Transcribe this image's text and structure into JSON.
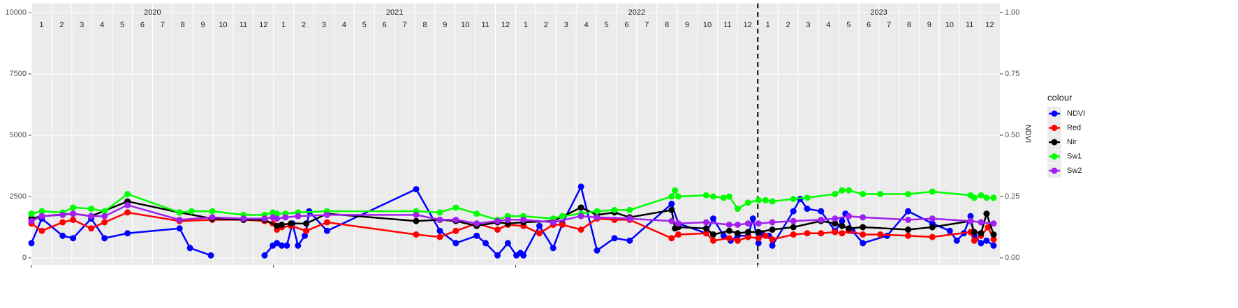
{
  "chart_data": {
    "type": "line",
    "y2_title": "NDVI",
    "legend_title": "colour",
    "legend": "right",
    "years": [
      2020,
      2021,
      2022,
      2023
    ],
    "months": [
      1,
      2,
      3,
      4,
      5,
      6,
      7,
      8,
      9,
      10,
      11,
      12
    ],
    "vline": 2023,
    "xlim": [
      2020,
      2024
    ],
    "ylim": [
      -284,
      10369
    ],
    "yticks": [
      0,
      2500,
      5000,
      7500,
      10000
    ],
    "y2lim": [
      -0.0284,
      1.0369
    ],
    "y2ticks": [
      {
        "value": 0,
        "label": "0.00"
      },
      {
        "value": 0.25,
        "label": "0.25"
      },
      {
        "value": 0.5,
        "label": "0.50"
      },
      {
        "value": 0.75,
        "label": "0.75"
      },
      {
        "value": 1,
        "label": "1.00"
      }
    ],
    "grid": true,
    "series": [
      {
        "name": "NDVI",
        "color": "#0000ff",
        "axis": "y2",
        "x": [
          2020.0,
          2020.043,
          2020.129,
          2020.172,
          2020.247,
          2020.302,
          2020.397,
          2020.612,
          2020.655,
          2020.741,
          null,
          2020.963,
          2020.997,
          2021.014,
          2021.034,
          2021.055,
          2021.078,
          2021.101,
          2021.129,
          2021.135,
          2021.147,
          2021.221,
          2021.589,
          2021.687,
          2021.753,
          2021.839,
          2021.876,
          2021.925,
          2021.968,
          2022.003,
          2022.02,
          2022.032,
          2022.098,
          2022.155,
          2022.193,
          2022.27,
          2022.336,
          2022.408,
          2022.471,
          2022.644,
          2022.672,
          2022.787,
          2022.816,
          2022.859,
          2022.888,
          2022.917,
          2022.96,
          2022.98,
          2023.003,
          2023.017,
          2023.046,
          2023.06,
          2023.147,
          2023.175,
          2023.204,
          2023.261,
          2023.319,
          2023.348,
          2023.362,
          2023.391,
          2023.434,
          2023.534,
          2023.621,
          2023.721,
          2023.793,
          2023.822,
          2023.851,
          2023.879,
          2023.894,
          2023.922,
          2023.945,
          2023.974
        ],
        "values": [
          0.06,
          0.16,
          0.09,
          0.08,
          0.16,
          0.08,
          0.1,
          0.12,
          0.04,
          0.01,
          null,
          0.01,
          0.05,
          0.06,
          0.05,
          0.05,
          0.14,
          0.05,
          0.09,
          0.11,
          0.19,
          0.11,
          0.28,
          0.11,
          0.06,
          0.09,
          0.06,
          0.01,
          0.06,
          0.01,
          0.02,
          0.01,
          0.13,
          0.04,
          0.14,
          0.29,
          0.03,
          0.08,
          0.07,
          0.22,
          0.14,
          0.1,
          0.16,
          0.09,
          0.07,
          0.09,
          0.09,
          0.16,
          0.06,
          0.1,
          0.09,
          0.05,
          0.19,
          0.24,
          0.2,
          0.19,
          0.11,
          0.15,
          0.18,
          0.11,
          0.06,
          0.09,
          0.19,
          0.14,
          0.11,
          0.07,
          0.1,
          0.17,
          0.09,
          0.06,
          0.07,
          0.05
        ]
      },
      {
        "name": "Red",
        "color": "#ff0000",
        "x": [
          2020.0,
          2020.043,
          2020.129,
          2020.172,
          2020.247,
          2020.302,
          2020.397,
          2020.612,
          2020.747,
          2020.876,
          2020.963,
          2020.997,
          2021.014,
          2021.034,
          2021.072,
          2021.135,
          2021.221,
          2021.589,
          2021.687,
          2021.753,
          2021.839,
          2021.925,
          2021.968,
          2022.032,
          2022.098,
          2022.155,
          2022.193,
          2022.27,
          2022.336,
          2022.408,
          2022.471,
          2022.644,
          2022.672,
          2022.787,
          2022.816,
          2022.882,
          2022.917,
          2022.96,
          2023.003,
          2023.032,
          2023.06,
          2023.147,
          2023.204,
          2023.261,
          2023.319,
          2023.348,
          2023.376,
          2023.434,
          2023.506,
          2023.621,
          2023.721,
          2023.879,
          2023.894,
          2023.922,
          2023.951,
          2023.974
        ],
        "values": [
          1400,
          1100,
          1450,
          1550,
          1200,
          1450,
          1850,
          1500,
          1550,
          1550,
          1500,
          1400,
          1150,
          1250,
          1300,
          1100,
          1450,
          950,
          850,
          1100,
          1400,
          1150,
          1350,
          1300,
          1000,
          1350,
          1350,
          1150,
          1600,
          1550,
          1550,
          800,
          950,
          1000,
          700,
          800,
          700,
          850,
          800,
          900,
          750,
          950,
          1000,
          1000,
          1050,
          1000,
          1100,
          950,
          950,
          900,
          850,
          1050,
          700,
          900,
          1250,
          750
        ]
      },
      {
        "name": "Nir",
        "color": "#000000",
        "x": [
          2020.0,
          2020.043,
          2020.172,
          2020.247,
          2020.397,
          2020.612,
          2020.747,
          2020.876,
          2020.963,
          2021.014,
          2021.034,
          2021.072,
          2021.135,
          2021.221,
          2021.589,
          2021.687,
          2021.753,
          2021.839,
          2021.925,
          2021.968,
          2022.032,
          2022.155,
          2022.27,
          2022.336,
          2022.408,
          2022.471,
          2022.644,
          2022.658,
          2022.672,
          2022.787,
          2022.816,
          2022.882,
          2022.917,
          2022.96,
          2023.003,
          2023.06,
          2023.147,
          2023.261,
          2023.319,
          2023.348,
          2023.376,
          2023.434,
          2023.621,
          2023.721,
          2023.879,
          2023.894,
          2023.922,
          2023.945,
          2023.974
        ],
        "values": [
          1600,
          1700,
          1800,
          1700,
          2300,
          1850,
          1600,
          1550,
          1550,
          1300,
          1350,
          1400,
          1400,
          1800,
          1500,
          1550,
          1500,
          1300,
          1450,
          1400,
          1450,
          1500,
          2050,
          1750,
          1850,
          1650,
          1950,
          1200,
          1250,
          1200,
          950,
          1100,
          1000,
          1050,
          1050,
          1150,
          1250,
          1500,
          1400,
          1300,
          1200,
          1250,
          1150,
          1250,
          1500,
          1050,
          1000,
          1800,
          950
        ]
      },
      {
        "name": "Sw1",
        "color": "#00ff00",
        "x": [
          2020.0,
          2020.043,
          2020.129,
          2020.172,
          2020.247,
          2020.302,
          2020.397,
          2020.612,
          2020.661,
          2020.747,
          2020.876,
          2020.963,
          2020.997,
          2021.014,
          2021.049,
          2021.101,
          2021.221,
          2021.589,
          2021.687,
          2021.753,
          2021.839,
          2021.925,
          2021.968,
          2022.032,
          2022.155,
          2022.193,
          2022.27,
          2022.336,
          2022.408,
          2022.471,
          2022.644,
          2022.658,
          2022.672,
          2022.787,
          2022.816,
          2022.859,
          2022.882,
          2022.917,
          2022.96,
          2023.003,
          2023.032,
          2023.06,
          2023.147,
          2023.204,
          2023.319,
          2023.348,
          2023.376,
          2023.434,
          2023.506,
          2023.621,
          2023.721,
          2023.879,
          2023.894,
          2023.922,
          2023.945,
          2023.974
        ],
        "values": [
          1800,
          1900,
          1850,
          2050,
          2000,
          1900,
          2600,
          1850,
          1900,
          1900,
          1750,
          1750,
          1850,
          1800,
          1800,
          1850,
          1900,
          1900,
          1850,
          2050,
          1800,
          1550,
          1700,
          1700,
          1600,
          1700,
          1800,
          1900,
          1950,
          1950,
          2500,
          2750,
          2500,
          2550,
          2500,
          2450,
          2500,
          2000,
          2250,
          2350,
          2350,
          2300,
          2400,
          2450,
          2600,
          2750,
          2750,
          2600,
          2600,
          2600,
          2700,
          2550,
          2450,
          2550,
          2450,
          2450
        ]
      },
      {
        "name": "Sw2",
        "color": "#a020f0",
        "x": [
          2020.0,
          2020.043,
          2020.129,
          2020.172,
          2020.247,
          2020.302,
          2020.397,
          2020.612,
          2020.747,
          2020.876,
          2020.963,
          2020.997,
          2021.014,
          2021.049,
          2021.101,
          2021.221,
          2021.589,
          2021.687,
          2021.753,
          2021.839,
          2021.925,
          2021.968,
          2022.032,
          2022.155,
          2022.27,
          2022.336,
          2022.471,
          2022.644,
          2022.672,
          2022.787,
          2022.882,
          2022.917,
          2022.96,
          2023.003,
          2023.06,
          2023.147,
          2023.261,
          2023.319,
          2023.376,
          2023.434,
          2023.621,
          2023.721,
          2023.879,
          2023.922,
          2023.974
        ],
        "values": [
          1500,
          1700,
          1750,
          1800,
          1700,
          1700,
          2150,
          1550,
          1650,
          1600,
          1600,
          1650,
          1600,
          1650,
          1700,
          1750,
          1750,
          1550,
          1550,
          1400,
          1500,
          1550,
          1550,
          1450,
          1700,
          1650,
          1600,
          1500,
          1400,
          1450,
          1350,
          1350,
          1400,
          1400,
          1450,
          1500,
          1550,
          1600,
          1700,
          1650,
          1550,
          1600,
          1500,
          1450,
          1400
        ]
      }
    ]
  }
}
